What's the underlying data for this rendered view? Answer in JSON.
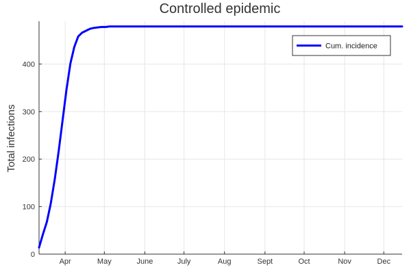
{
  "chart_data": {
    "type": "line",
    "title": "Controlled epidemic",
    "xlabel": "",
    "ylabel": "Total infections",
    "ylim": [
      0,
      490
    ],
    "xlim": [
      "2020-03-12",
      "2020-12-15"
    ],
    "y_ticks": [
      0,
      100,
      200,
      300,
      400
    ],
    "y_tick_labels": [
      "0",
      "100",
      "200",
      "300",
      "400"
    ],
    "x_ticks": [
      "2020-04-01",
      "2020-05-01",
      "2020-06-01",
      "2020-07-01",
      "2020-08-01",
      "2020-09-01",
      "2020-10-01",
      "2020-11-01",
      "2020-12-01"
    ],
    "x_tick_labels": [
      "Apr",
      "May",
      "June",
      "July",
      "Aug",
      "Sept",
      "Oct",
      "Nov",
      "Dec"
    ],
    "grid": true,
    "legend_position": "top-right",
    "colors": {
      "series": "#0000ff",
      "axis": "#333333",
      "grid": "#e6e6e6"
    },
    "series": [
      {
        "name": "Cum. incidence",
        "x": [
          "2020-03-12",
          "2020-03-15",
          "2020-03-18",
          "2020-03-21",
          "2020-03-24",
          "2020-03-27",
          "2020-03-30",
          "2020-04-02",
          "2020-04-05",
          "2020-04-08",
          "2020-04-11",
          "2020-04-14",
          "2020-04-17",
          "2020-04-20",
          "2020-04-23",
          "2020-04-26",
          "2020-04-29",
          "2020-05-02",
          "2020-05-05",
          "2020-05-08",
          "2020-05-11",
          "2020-05-15",
          "2020-05-25",
          "2020-06-15",
          "2020-07-15",
          "2020-08-15",
          "2020-09-15",
          "2020-10-15",
          "2020-11-15",
          "2020-12-15"
        ],
        "values": [
          14,
          42,
          68,
          107,
          157,
          216,
          281,
          346,
          401,
          436,
          458,
          466,
          470,
          474,
          476,
          477,
          478,
          478,
          479,
          479,
          479,
          479,
          479,
          479,
          479,
          479,
          479,
          479,
          479,
          479
        ]
      }
    ]
  }
}
